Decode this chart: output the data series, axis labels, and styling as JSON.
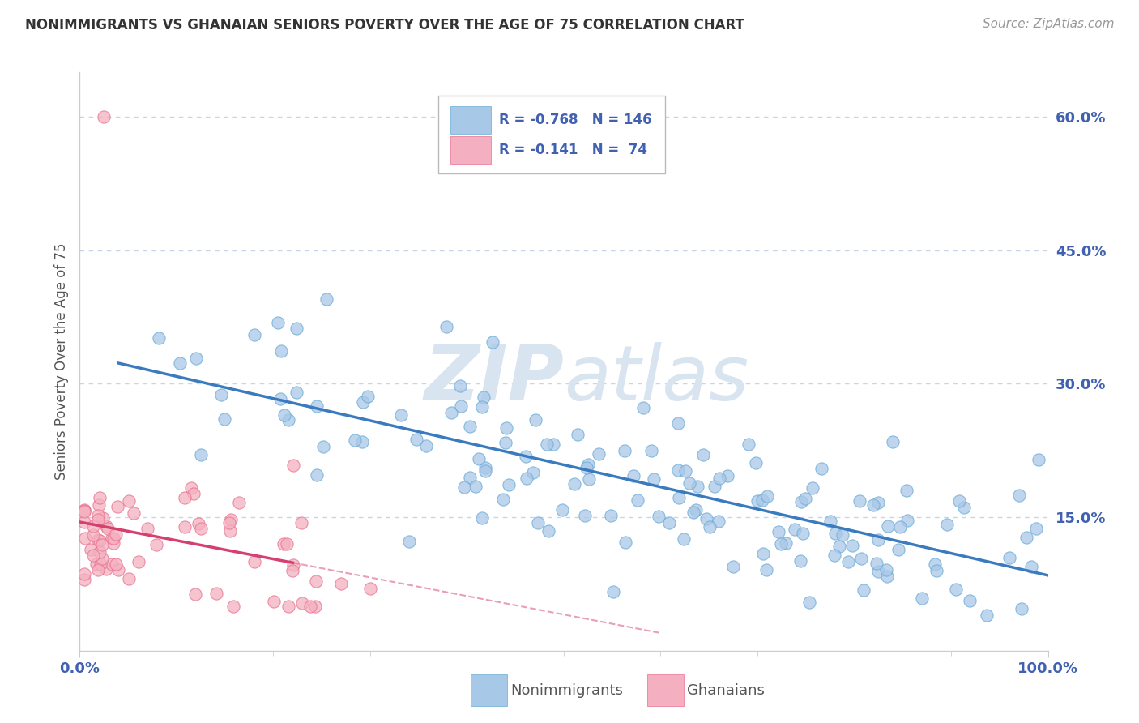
{
  "title": "NONIMMIGRANTS VS GHANAIAN SENIORS POVERTY OVER THE AGE OF 75 CORRELATION CHART",
  "source": "Source: ZipAtlas.com",
  "ylabel": "Seniors Poverty Over the Age of 75",
  "xlim": [
    0.0,
    1.0
  ],
  "ylim": [
    0.0,
    0.65
  ],
  "blue_R": "-0.768",
  "blue_N": "146",
  "pink_R": "-0.141",
  "pink_N": "74",
  "blue_color": "#a8c8e8",
  "pink_color": "#f4b0c0",
  "blue_edge_color": "#6aaad4",
  "pink_edge_color": "#e87090",
  "blue_line_color": "#3a7abf",
  "pink_line_color": "#d44070",
  "watermark_color": "#d8e4f0",
  "background_color": "#ffffff",
  "grid_color": "#c8d4e8",
  "axis_color": "#cccccc",
  "tick_color": "#4060b0",
  "ylabel_color": "#555555",
  "title_color": "#333333",
  "source_color": "#999999",
  "legend_nonimmigrants": "Nonimmigrants",
  "legend_ghanaians": "Ghanaians"
}
